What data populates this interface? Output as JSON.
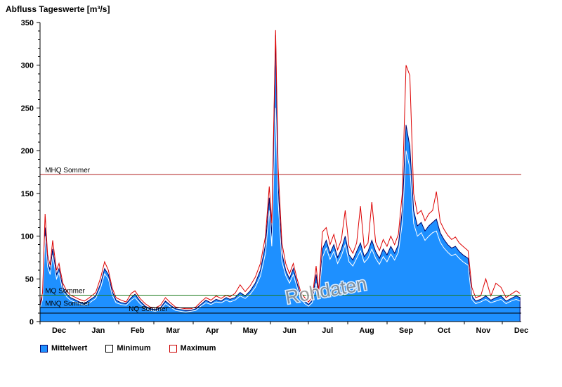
{
  "title": "Abfluss Tageswerte [m³/s]",
  "watermark": "Rohdaten",
  "legend": {
    "items": [
      {
        "label": "Mittelwert",
        "fill": "#1e90ff",
        "border": "#000066"
      },
      {
        "label": "Minimum",
        "fill": "#ffffff",
        "border": "#000000"
      },
      {
        "label": "Maximum",
        "fill": "#ffffff",
        "border": "#cc0000"
      }
    ]
  },
  "chart_data": {
    "type": "area",
    "title": "Abfluss Tageswerte [m³/s]",
    "xlabel": "",
    "ylabel": "m³/s",
    "xlim": [
      0,
      380
    ],
    "ylim": [
      0,
      350
    ],
    "y_ticks": [
      0,
      50,
      100,
      150,
      200,
      250,
      300,
      350
    ],
    "y_minor_step": 10,
    "grid": false,
    "legend_position": "bottom-left",
    "months": [
      {
        "label": "Dec",
        "start": 0
      },
      {
        "label": "Jan",
        "start": 31
      },
      {
        "label": "Feb",
        "start": 62
      },
      {
        "label": "Mar",
        "start": 90
      },
      {
        "label": "Apr",
        "start": 121
      },
      {
        "label": "May",
        "start": 151
      },
      {
        "label": "Jun",
        "start": 182
      },
      {
        "label": "Jul",
        "start": 212
      },
      {
        "label": "Aug",
        "start": 243
      },
      {
        "label": "Sep",
        "start": 274
      },
      {
        "label": "Oct",
        "start": 304
      },
      {
        "label": "Nov",
        "start": 335
      },
      {
        "label": "Dec",
        "start": 365
      }
    ],
    "x_days": [
      0,
      2,
      4,
      6,
      8,
      10,
      13,
      15,
      18,
      21,
      24,
      27,
      31,
      35,
      39,
      44,
      48,
      51,
      54,
      57,
      60,
      64,
      68,
      72,
      75,
      79,
      83,
      87,
      91,
      95,
      99,
      103,
      107,
      111,
      115,
      119,
      123,
      127,
      131,
      135,
      139,
      143,
      147,
      150,
      154,
      158,
      162,
      166,
      170,
      174,
      178,
      181,
      183,
      186,
      188,
      191,
      194,
      197,
      200,
      203,
      206,
      209,
      212,
      215,
      218,
      220,
      223,
      226,
      229,
      232,
      235,
      238,
      241,
      244,
      247,
      250,
      253,
      256,
      259,
      262,
      265,
      268,
      271,
      274,
      277,
      280,
      283,
      286,
      289,
      292,
      295,
      298,
      301,
      304,
      307,
      310,
      313,
      316,
      319,
      322,
      325,
      328,
      331,
      334,
      338,
      341,
      344,
      348,
      352,
      356,
      360,
      364,
      368,
      372,
      376,
      379
    ],
    "series": [
      {
        "name": "Mittelwert",
        "render": "area",
        "color": "#1e90ff",
        "stroke": "#000066",
        "values": [
          18,
          30,
          110,
          70,
          60,
          85,
          55,
          62,
          40,
          32,
          28,
          26,
          23,
          21,
          25,
          30,
          45,
          62,
          55,
          35,
          25,
          22,
          21,
          28,
          32,
          24,
          18,
          15,
          14,
          16,
          24,
          19,
          15,
          14,
          13,
          13,
          15,
          20,
          25,
          22,
          26,
          24,
          28,
          26,
          28,
          34,
          30,
          36,
          45,
          60,
          90,
          145,
          100,
          335,
          160,
          80,
          60,
          50,
          62,
          45,
          30,
          24,
          20,
          25,
          55,
          30,
          85,
          95,
          80,
          90,
          75,
          85,
          100,
          78,
          72,
          82,
          92,
          76,
          82,
          95,
          82,
          74,
          85,
          78,
          88,
          80,
          90,
          130,
          230,
          205,
          130,
          112,
          116,
          106,
          112,
          116,
          120,
          104,
          96,
          90,
          86,
          88,
          82,
          78,
          74,
          30,
          24,
          26,
          30,
          25,
          28,
          30,
          24,
          27,
          30,
          28
        ]
      },
      {
        "name": "Minimum",
        "render": "line",
        "color": "#ffffff",
        "values": [
          16,
          26,
          100,
          64,
          55,
          78,
          50,
          57,
          36,
          29,
          25,
          23,
          21,
          19,
          22,
          27,
          40,
          56,
          50,
          31,
          22,
          20,
          19,
          25,
          28,
          21,
          16,
          13,
          12,
          14,
          21,
          17,
          13,
          12,
          11,
          12,
          13,
          18,
          22,
          20,
          23,
          22,
          25,
          23,
          25,
          30,
          27,
          32,
          40,
          53,
          80,
          130,
          88,
          250,
          140,
          70,
          54,
          45,
          55,
          40,
          27,
          21,
          18,
          22,
          45,
          26,
          75,
          86,
          73,
          82,
          68,
          77,
          90,
          70,
          65,
          74,
          83,
          69,
          74,
          85,
          74,
          67,
          76,
          70,
          79,
          72,
          81,
          115,
          200,
          180,
          115,
          100,
          104,
          95,
          100,
          104,
          106,
          93,
          86,
          81,
          77,
          79,
          74,
          70,
          66,
          26,
          21,
          23,
          26,
          22,
          24,
          26,
          21,
          24,
          26,
          24
        ]
      },
      {
        "name": "Maximum",
        "render": "line",
        "color": "#dd0000",
        "values": [
          20,
          34,
          126,
          78,
          66,
          95,
          60,
          68,
          45,
          36,
          31,
          29,
          26,
          24,
          28,
          34,
          52,
          70,
          60,
          39,
          28,
          25,
          23,
          33,
          36,
          27,
          21,
          17,
          16,
          19,
          28,
          22,
          17,
          16,
          15,
          15,
          17,
          23,
          28,
          25,
          30,
          27,
          31,
          29,
          33,
          43,
          35,
          42,
          52,
          68,
          100,
          158,
          115,
          341,
          180,
          92,
          68,
          56,
          68,
          50,
          34,
          28,
          23,
          29,
          65,
          36,
          105,
          110,
          90,
          102,
          84,
          96,
          130,
          88,
          80,
          92,
          135,
          86,
          92,
          140,
          93,
          83,
          96,
          88,
          100,
          90,
          102,
          150,
          300,
          288,
          150,
          126,
          130,
          118,
          126,
          130,
          152,
          117,
          108,
          101,
          96,
          99,
          92,
          88,
          83,
          40,
          28,
          30,
          50,
          30,
          45,
          40,
          28,
          32,
          36,
          33
        ]
      }
    ],
    "reference_lines": [
      {
        "label": "MHQ Sommer",
        "value": 172,
        "color": "#b22222",
        "label_day": 4
      },
      {
        "label": "MQ Sommer",
        "value": 31,
        "color": "#1a7a1a",
        "label_day": 4
      },
      {
        "label": "MNQ Sommer",
        "value": 16,
        "color": "#000000",
        "label_day": 4
      },
      {
        "label": "NQ Sommer",
        "value": 10,
        "color": "#000000",
        "label_day": 70
      }
    ]
  }
}
